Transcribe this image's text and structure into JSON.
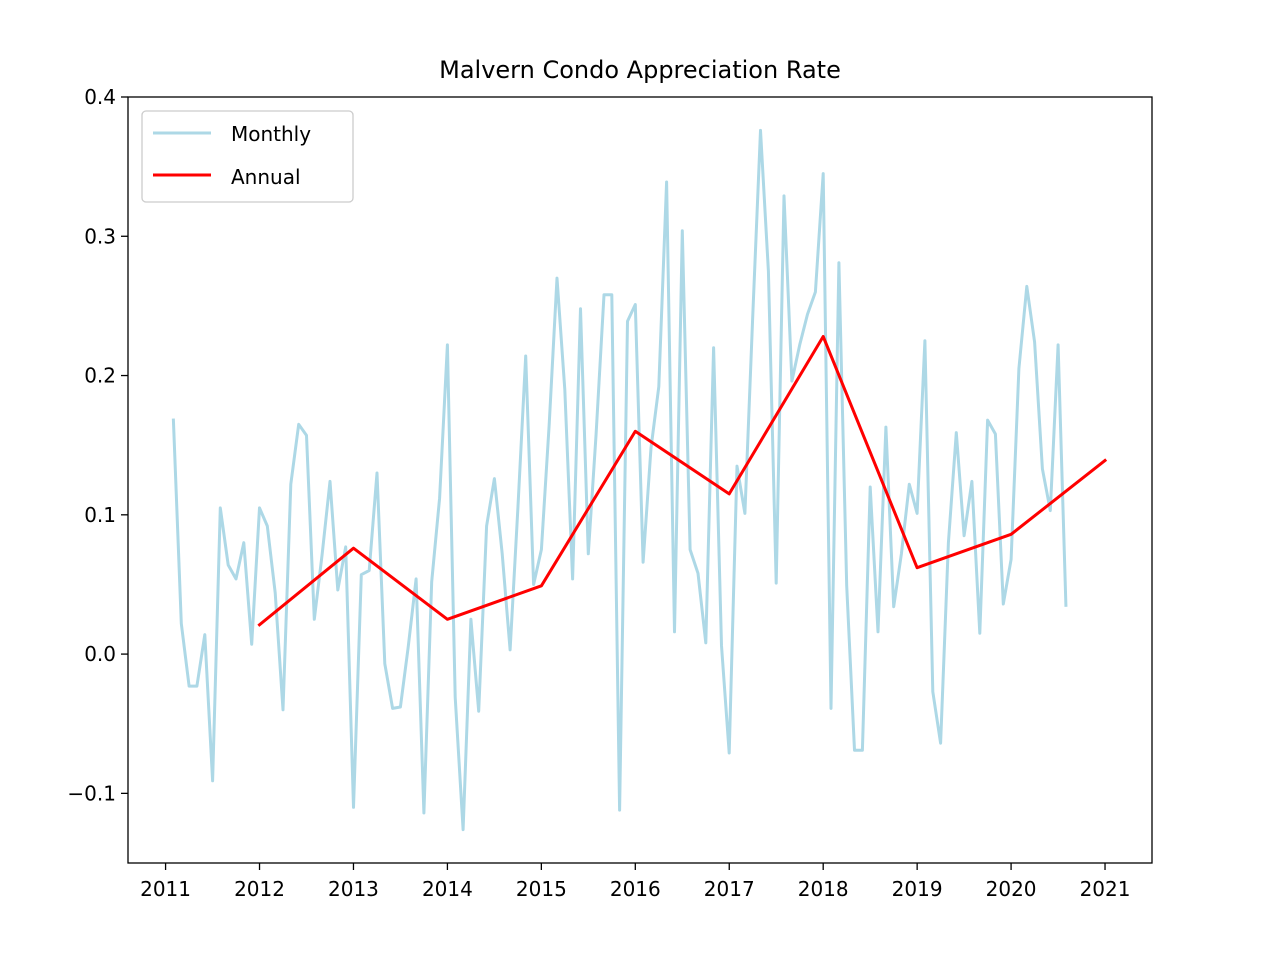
{
  "chart_data": {
    "type": "line",
    "title": "Malvern Condo Appreciation Rate",
    "xlabel": "",
    "ylabel": "",
    "xlim": [
      2010.6,
      2021.5
    ],
    "ylim": [
      -0.15,
      0.4
    ],
    "x_ticks": [
      2011,
      2012,
      2013,
      2014,
      2015,
      2016,
      2017,
      2018,
      2019,
      2020,
      2021
    ],
    "y_ticks": [
      {
        "value": -0.1,
        "label": "−0.1"
      },
      {
        "value": 0.0,
        "label": "0.0"
      },
      {
        "value": 0.1,
        "label": "0.1"
      },
      {
        "value": 0.2,
        "label": "0.2"
      },
      {
        "value": 0.3,
        "label": "0.3"
      },
      {
        "value": 0.4,
        "label": "0.4"
      }
    ],
    "grid": false,
    "legend_position": "top-left",
    "series": [
      {
        "name": "Monthly",
        "color": "#add8e6",
        "points": [
          [
            2011.083,
            0.168
          ],
          [
            2011.167,
            0.022
          ],
          [
            2011.25,
            -0.023
          ],
          [
            2011.333,
            -0.023
          ],
          [
            2011.417,
            0.014
          ],
          [
            2011.5,
            -0.091
          ],
          [
            2011.583,
            0.105
          ],
          [
            2011.667,
            0.064
          ],
          [
            2011.75,
            0.054
          ],
          [
            2011.833,
            0.08
          ],
          [
            2011.917,
            0.007
          ],
          [
            2012.0,
            0.105
          ],
          [
            2012.083,
            0.092
          ],
          [
            2012.167,
            0.044
          ],
          [
            2012.25,
            -0.04
          ],
          [
            2012.333,
            0.122
          ],
          [
            2012.417,
            0.165
          ],
          [
            2012.5,
            0.157
          ],
          [
            2012.583,
            0.025
          ],
          [
            2012.667,
            0.072
          ],
          [
            2012.75,
            0.124
          ],
          [
            2012.833,
            0.046
          ],
          [
            2012.917,
            0.077
          ],
          [
            2013.0,
            -0.11
          ],
          [
            2013.083,
            0.057
          ],
          [
            2013.167,
            0.06
          ],
          [
            2013.25,
            0.13
          ],
          [
            2013.333,
            -0.007
          ],
          [
            2013.417,
            -0.039
          ],
          [
            2013.5,
            -0.038
          ],
          [
            2013.583,
            0.005
          ],
          [
            2013.667,
            0.054
          ],
          [
            2013.75,
            -0.114
          ],
          [
            2013.833,
            0.052
          ],
          [
            2013.917,
            0.112
          ],
          [
            2014.0,
            0.222
          ],
          [
            2014.083,
            -0.031
          ],
          [
            2014.167,
            -0.126
          ],
          [
            2014.25,
            0.025
          ],
          [
            2014.333,
            -0.041
          ],
          [
            2014.417,
            0.092
          ],
          [
            2014.5,
            0.126
          ],
          [
            2014.583,
            0.072
          ],
          [
            2014.667,
            0.003
          ],
          [
            2014.75,
            0.105
          ],
          [
            2014.833,
            0.214
          ],
          [
            2014.917,
            0.05
          ],
          [
            2015.0,
            0.075
          ],
          [
            2015.083,
            0.165
          ],
          [
            2015.167,
            0.27
          ],
          [
            2015.25,
            0.19
          ],
          [
            2015.333,
            0.054
          ],
          [
            2015.417,
            0.248
          ],
          [
            2015.5,
            0.072
          ],
          [
            2015.583,
            0.158
          ],
          [
            2015.667,
            0.258
          ],
          [
            2015.75,
            0.258
          ],
          [
            2015.833,
            -0.112
          ],
          [
            2015.917,
            0.239
          ],
          [
            2016.0,
            0.251
          ],
          [
            2016.083,
            0.066
          ],
          [
            2016.167,
            0.148
          ],
          [
            2016.25,
            0.192
          ],
          [
            2016.333,
            0.339
          ],
          [
            2016.417,
            0.016
          ],
          [
            2016.5,
            0.304
          ],
          [
            2016.583,
            0.075
          ],
          [
            2016.667,
            0.058
          ],
          [
            2016.75,
            0.008
          ],
          [
            2016.833,
            0.22
          ],
          [
            2016.917,
            0.006
          ],
          [
            2017.0,
            -0.071
          ],
          [
            2017.083,
            0.135
          ],
          [
            2017.167,
            0.101
          ],
          [
            2017.25,
            0.242
          ],
          [
            2017.333,
            0.376
          ],
          [
            2017.417,
            0.275
          ],
          [
            2017.5,
            0.051
          ],
          [
            2017.583,
            0.329
          ],
          [
            2017.667,
            0.196
          ],
          [
            2017.75,
            0.222
          ],
          [
            2017.833,
            0.244
          ],
          [
            2017.917,
            0.26
          ],
          [
            2018.0,
            0.345
          ],
          [
            2018.083,
            -0.039
          ],
          [
            2018.167,
            0.281
          ],
          [
            2018.25,
            0.049
          ],
          [
            2018.333,
            -0.069
          ],
          [
            2018.417,
            -0.069
          ],
          [
            2018.5,
            0.12
          ],
          [
            2018.583,
            0.016
          ],
          [
            2018.667,
            0.163
          ],
          [
            2018.75,
            0.034
          ],
          [
            2018.833,
            0.072
          ],
          [
            2018.917,
            0.122
          ],
          [
            2019.0,
            0.101
          ],
          [
            2019.083,
            0.225
          ],
          [
            2019.167,
            -0.027
          ],
          [
            2019.25,
            -0.064
          ],
          [
            2019.333,
            0.08
          ],
          [
            2019.417,
            0.159
          ],
          [
            2019.5,
            0.085
          ],
          [
            2019.583,
            0.124
          ],
          [
            2019.667,
            0.015
          ],
          [
            2019.75,
            0.168
          ],
          [
            2019.833,
            0.158
          ],
          [
            2019.917,
            0.036
          ],
          [
            2020.0,
            0.068
          ],
          [
            2020.083,
            0.205
          ],
          [
            2020.167,
            0.264
          ],
          [
            2020.25,
            0.224
          ],
          [
            2020.333,
            0.133
          ],
          [
            2020.417,
            0.103
          ],
          [
            2020.5,
            0.222
          ],
          [
            2020.583,
            0.035
          ]
        ]
      },
      {
        "name": "Annual",
        "color": "#ff0000",
        "points": [
          [
            2012,
            0.021
          ],
          [
            2013,
            0.076
          ],
          [
            2014,
            0.025
          ],
          [
            2015,
            0.049
          ],
          [
            2016,
            0.16
          ],
          [
            2017,
            0.115
          ],
          [
            2018,
            0.228
          ],
          [
            2019,
            0.062
          ],
          [
            2020,
            0.086
          ],
          [
            2021,
            0.139
          ]
        ]
      }
    ]
  }
}
